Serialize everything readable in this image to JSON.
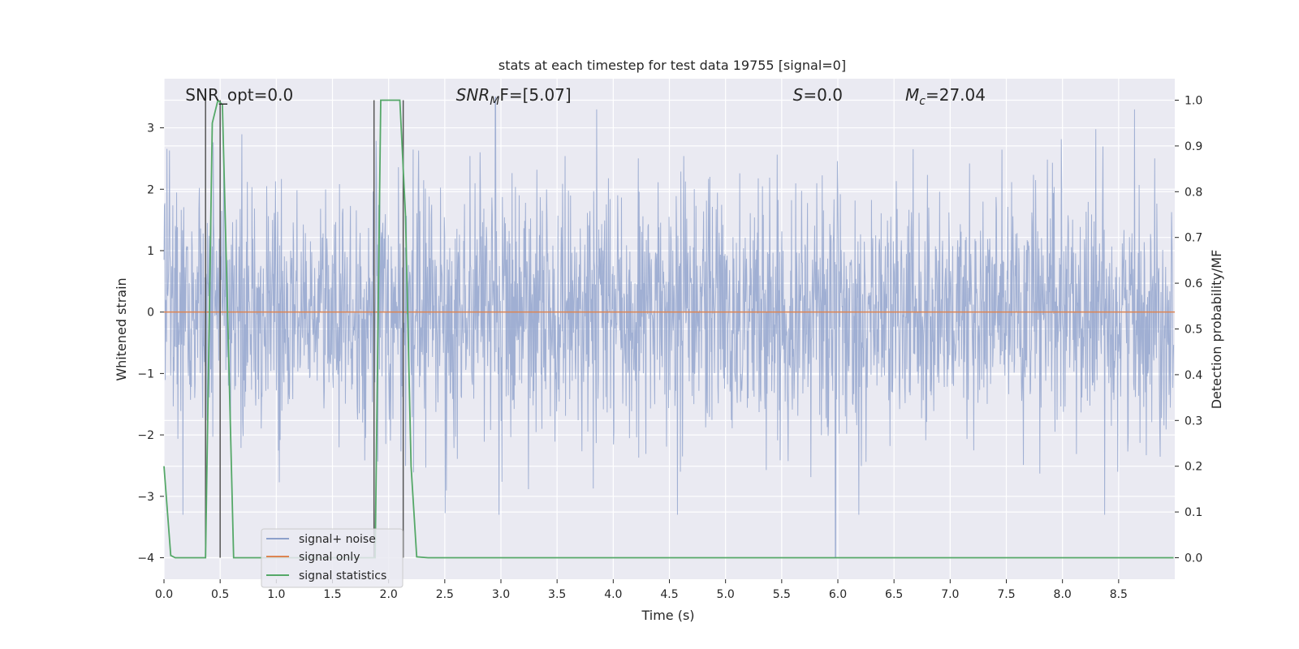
{
  "chart_data": {
    "type": "line",
    "title": "stats at each timestep for test data 19755 [signal=0]",
    "xlabel": "Time (s)",
    "ylabel": "Whitened strain",
    "y2label": "Detection probability/MF",
    "xlim": [
      0.0,
      9.0
    ],
    "ylim": [
      -4.35,
      3.8
    ],
    "y2lim": [
      -0.047,
      1.047
    ],
    "x_ticks": [
      0.0,
      0.5,
      1.0,
      1.5,
      2.0,
      2.5,
      3.0,
      3.5,
      4.0,
      4.5,
      5.0,
      5.5,
      6.0,
      6.5,
      7.0,
      7.5,
      8.0,
      8.5
    ],
    "x_tick_labels": [
      "0.0",
      "0.5",
      "1.0",
      "1.5",
      "2.0",
      "2.5",
      "3.0",
      "3.5",
      "4.0",
      "4.5",
      "5.0",
      "5.5",
      "6.0",
      "6.5",
      "7.0",
      "7.5",
      "8.0",
      "8.5"
    ],
    "y_ticks": [
      -4,
      -3,
      -2,
      -1,
      0,
      1,
      2,
      3
    ],
    "y_tick_labels": [
      "−4",
      "−3",
      "−2",
      "−1",
      "0",
      "1",
      "2",
      "3"
    ],
    "y2_ticks": [
      0.0,
      0.1,
      0.2,
      0.3,
      0.4,
      0.5,
      0.6,
      0.7,
      0.8,
      0.9,
      1.0
    ],
    "y2_tick_labels": [
      "0.0",
      "0.1",
      "0.2",
      "0.3",
      "0.4",
      "0.5",
      "0.6",
      "0.7",
      "0.8",
      "0.9",
      "1.0"
    ],
    "grid": true,
    "legend": {
      "placement": "lower-left",
      "entries": [
        {
          "label": "signal+ noise",
          "color": "#8da0cb"
        },
        {
          "label": "signal only",
          "color": "#dd8452"
        },
        {
          "label": "signal statistics",
          "color": "#55a868"
        }
      ]
    },
    "annotations": [
      {
        "text": "SNR_opt=0.0",
        "x": 0.19
      },
      {
        "prefix": "SNR",
        "sub": "M",
        "suffix": "F=[5.07]",
        "x": 2.6
      },
      {
        "prefix": "S",
        "sub": "",
        "suffix": "=0.0",
        "x": 5.6
      },
      {
        "prefix": "M",
        "sub": "c",
        "suffix": "=27.04",
        "x": 6.6
      }
    ],
    "series": [
      {
        "name": "signal+ noise",
        "color": "#8da0cb",
        "x_range": [
          0.0,
          8.99
        ],
        "amplitude_envelope": [
          -3.3,
          3.3
        ],
        "noise_sigma": 1.0,
        "peaks": [
          {
            "x": 2.95,
            "y": 3.5
          },
          {
            "x": 5.98,
            "y": -4.0
          }
        ]
      },
      {
        "name": "signal only",
        "color": "#dd8452",
        "x": [
          0.0,
          9.0
        ],
        "y": [
          0.0,
          0.0
        ]
      },
      {
        "name": "signal statistics",
        "color": "#55a868",
        "axis": "right",
        "x": [
          0.0,
          0.06,
          0.1,
          0.2,
          0.3,
          0.37,
          0.43,
          0.48,
          0.52,
          0.57,
          0.62,
          0.7,
          0.9,
          1.2,
          1.5,
          1.8,
          1.88,
          1.93,
          2.0,
          2.05,
          2.1,
          2.15,
          2.2,
          2.25,
          2.35,
          3.0,
          5.0,
          7.0,
          8.99
        ],
        "y": [
          0.2,
          0.005,
          0.0,
          0.0,
          0.0,
          0.0,
          0.95,
          1.0,
          0.99,
          0.5,
          0.0,
          0.0,
          0.0,
          0.0,
          0.0,
          0.0,
          0.0,
          1.0,
          1.0,
          1.0,
          1.0,
          0.75,
          0.2,
          0.002,
          0.0,
          0.0,
          0.0,
          0.0,
          0.0
        ]
      }
    ],
    "vertical_markers": [
      0.37,
      0.5,
      1.87,
      2.13
    ]
  }
}
